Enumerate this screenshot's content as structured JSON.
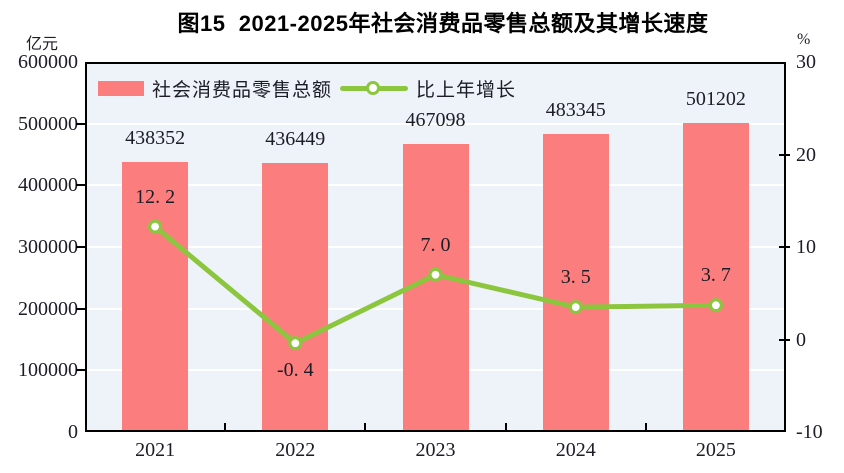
{
  "title": "图15  2021-2025年社会消费品零售总额及其增长速度",
  "left_axis": {
    "unit": "亿元",
    "ticks": [
      "600000",
      "500000",
      "400000",
      "300000",
      "200000",
      "100000",
      "0"
    ],
    "min": 0,
    "max": 600000
  },
  "right_axis": {
    "unit": "%",
    "ticks": [
      "30",
      "20",
      "10",
      "0",
      "-10"
    ],
    "min": -10,
    "max": 30
  },
  "legend": {
    "bar_label": "社会消费品零售总额",
    "line_label": "比上年增长"
  },
  "colors": {
    "bar": "#fc7d7d",
    "line": "#8cc63f",
    "marker_fill": "#ffffff",
    "plot_bg": "#edf3f8",
    "grid": "#ffffff",
    "frame": "#000000",
    "text": "#1d1d27"
  },
  "chart_data": {
    "type": "combo",
    "categories": [
      "2021",
      "2022",
      "2023",
      "2024",
      "2025"
    ],
    "series": [
      {
        "name": "社会消费品零售总额",
        "type": "bar",
        "axis": "left",
        "unit": "亿元",
        "values": [
          438352,
          436449,
          467098,
          483345,
          501202
        ],
        "labels": [
          "438352",
          "436449",
          "467098",
          "483345",
          "501202"
        ]
      },
      {
        "name": "比上年增长",
        "type": "line",
        "axis": "right",
        "unit": "%",
        "values": [
          12.2,
          -0.4,
          7.0,
          3.5,
          3.7
        ],
        "labels": [
          "12. 2",
          "-0. 4",
          "7. 0",
          "3. 5",
          "3. 7"
        ],
        "label_positions": [
          "above",
          "below",
          "above",
          "above",
          "above"
        ]
      }
    ],
    "left_ylim": [
      0,
      600000
    ],
    "right_ylim": [
      -10,
      30
    ],
    "grid": true,
    "legend_position": "top-left"
  }
}
